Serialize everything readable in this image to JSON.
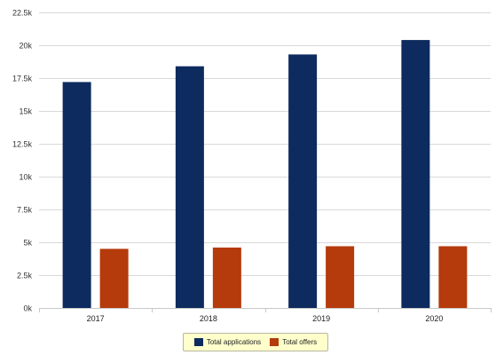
{
  "chart_data": {
    "type": "bar",
    "title": "",
    "xlabel": "",
    "ylabel": "",
    "categories": [
      "2017",
      "2018",
      "2019",
      "2020"
    ],
    "series": [
      {
        "name": "Total applications",
        "color": "#0d2b5e",
        "values": [
          17200,
          18400,
          19300,
          20400
        ]
      },
      {
        "name": "Total offers",
        "color": "#b53a0c",
        "values": [
          4500,
          4600,
          4700,
          4700
        ]
      }
    ],
    "ylim": [
      0,
      22500
    ],
    "yticks": [
      0,
      2500,
      5000,
      7500,
      10000,
      12500,
      15000,
      17500,
      20000,
      22500
    ],
    "ytick_labels": [
      "0k",
      "2.5k",
      "5k",
      "7.5k",
      "10k",
      "12.5k",
      "15k",
      "17.5k",
      "20k",
      "22.5k"
    ],
    "grid": true,
    "legend": "bottom-center"
  }
}
